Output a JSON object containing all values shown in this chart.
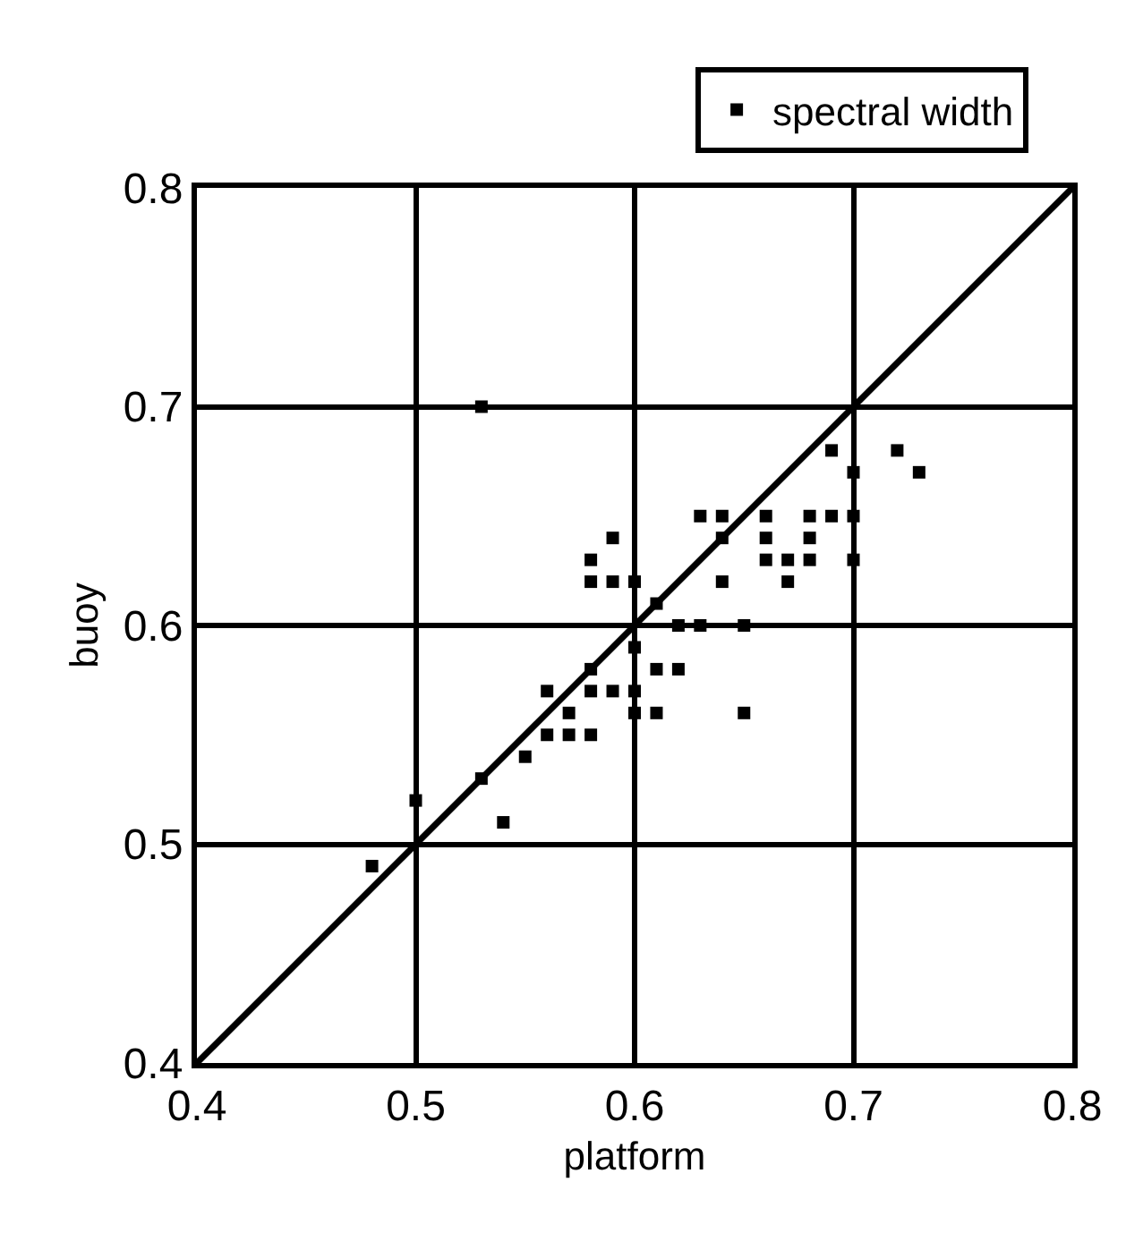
{
  "chart_data": {
    "type": "scatter",
    "xlabel": "platform",
    "ylabel": "buoy",
    "xlim": [
      0.4,
      0.8
    ],
    "ylim": [
      0.4,
      0.8
    ],
    "xticks": [
      0.4,
      0.5,
      0.6,
      0.7,
      0.8
    ],
    "yticks": [
      0.4,
      0.5,
      0.6,
      0.7,
      0.8
    ],
    "grid": true,
    "legend": "top right",
    "series": [
      {
        "name": "spectral width",
        "marker": "square",
        "color": "#000000",
        "x": [
          0.48,
          0.5,
          0.53,
          0.54,
          0.55,
          0.56,
          0.56,
          0.57,
          0.57,
          0.58,
          0.58,
          0.58,
          0.58,
          0.58,
          0.59,
          0.59,
          0.59,
          0.6,
          0.6,
          0.6,
          0.6,
          0.61,
          0.61,
          0.61,
          0.62,
          0.62,
          0.63,
          0.63,
          0.64,
          0.64,
          0.64,
          0.65,
          0.65,
          0.66,
          0.66,
          0.66,
          0.67,
          0.67,
          0.68,
          0.68,
          0.68,
          0.69,
          0.69,
          0.7,
          0.7,
          0.7,
          0.72,
          0.73,
          0.53
        ],
        "values": [
          0.49,
          0.52,
          0.53,
          0.51,
          0.54,
          0.55,
          0.57,
          0.55,
          0.56,
          0.55,
          0.57,
          0.58,
          0.62,
          0.63,
          0.62,
          0.64,
          0.57,
          0.62,
          0.59,
          0.57,
          0.56,
          0.61,
          0.58,
          0.56,
          0.6,
          0.58,
          0.6,
          0.65,
          0.65,
          0.64,
          0.62,
          0.6,
          0.56,
          0.65,
          0.64,
          0.63,
          0.63,
          0.62,
          0.63,
          0.64,
          0.65,
          0.65,
          0.68,
          0.67,
          0.65,
          0.63,
          0.68,
          0.67,
          0.7
        ]
      },
      {
        "type": "line",
        "marker": "none",
        "color": "#000000",
        "x": [
          0.4,
          0.8
        ],
        "values": [
          0.4,
          0.8
        ]
      }
    ]
  }
}
